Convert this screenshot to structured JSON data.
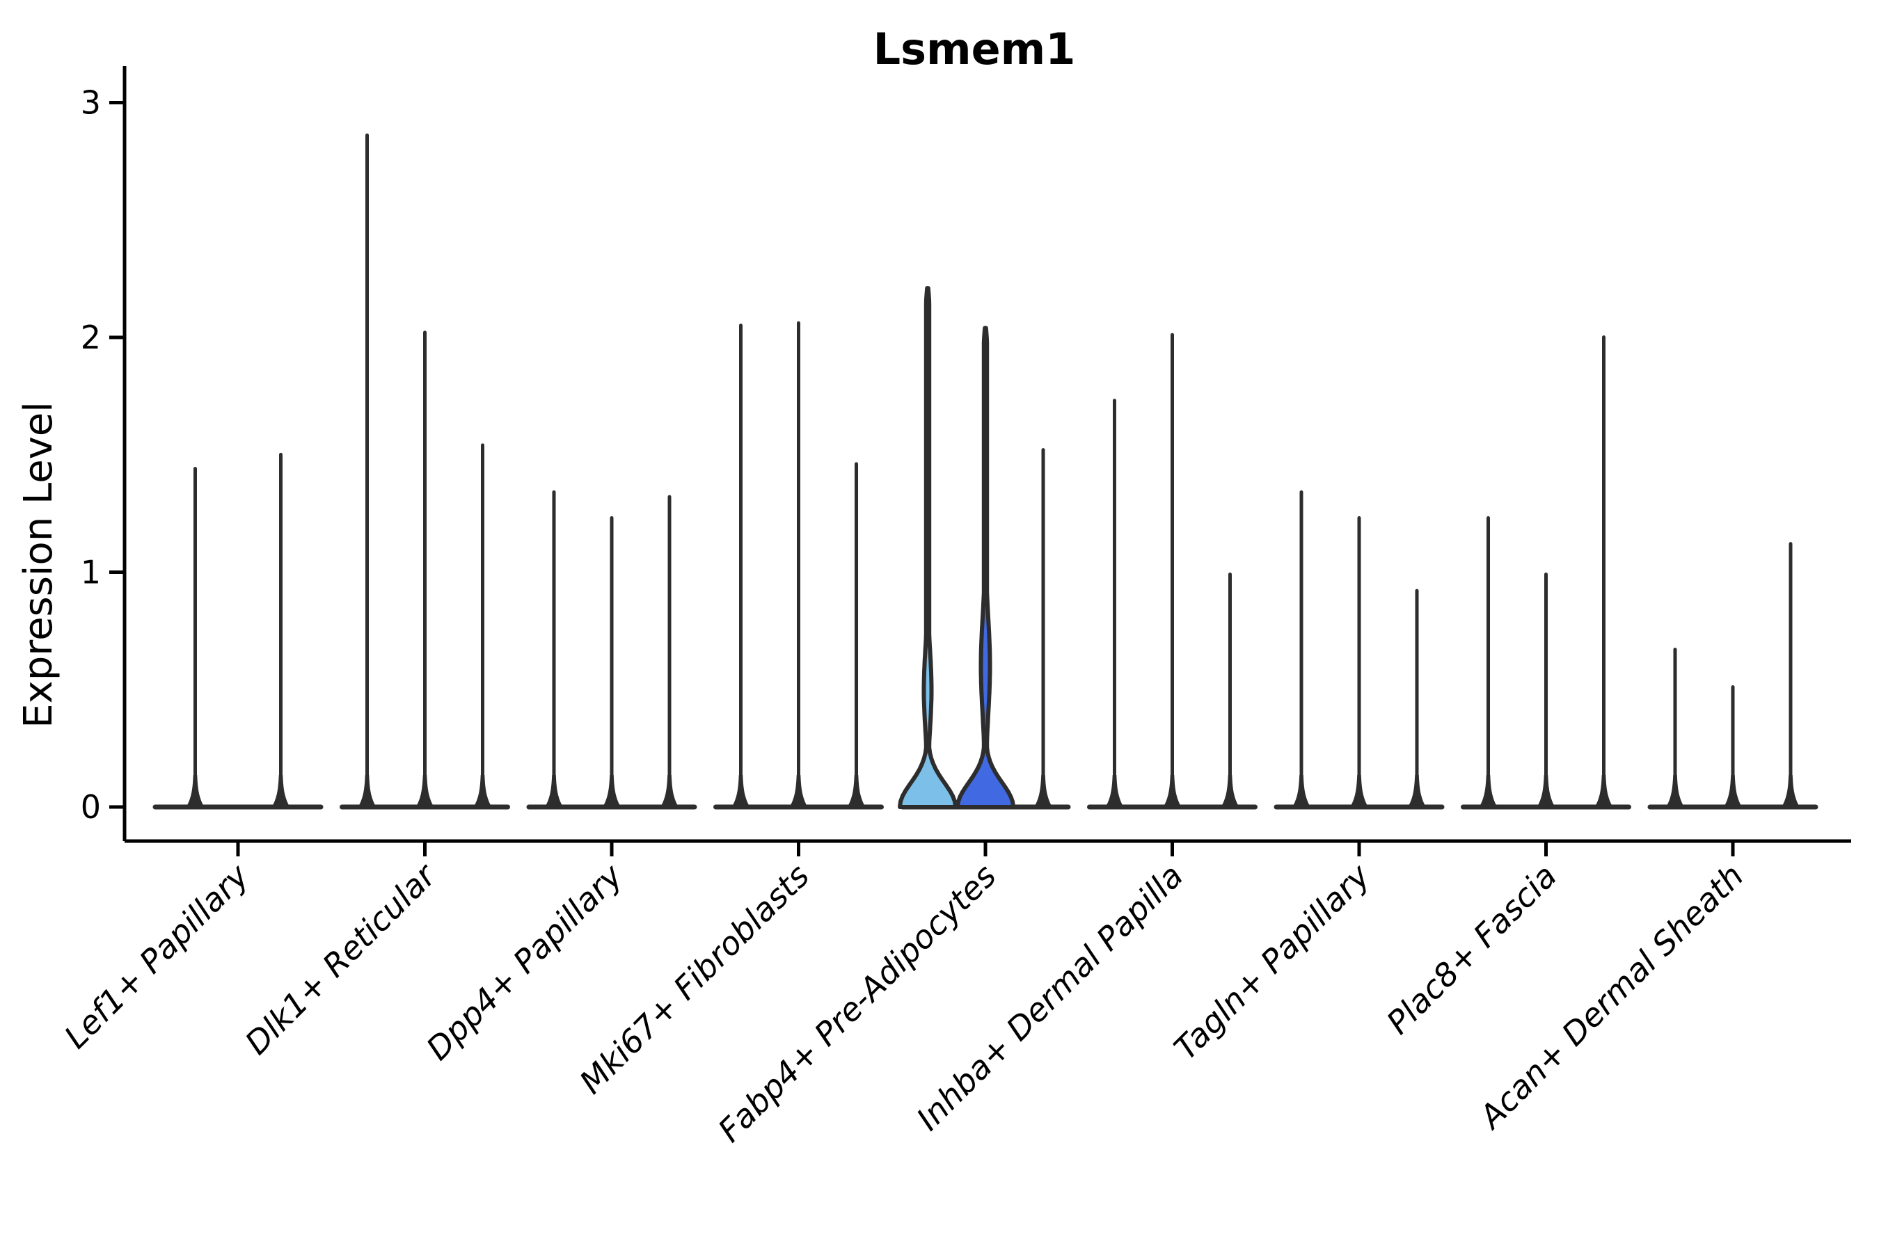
{
  "title": "Lsmem1",
  "y_axis": {
    "label": "Expression Level",
    "tick_labels": [
      "0",
      "1",
      "2",
      "3"
    ]
  },
  "colors": {
    "background": "#ffffff",
    "axis": "#000000",
    "violin_outline": "#2d2d2d",
    "highlight_light_blue": "#7cbfe9",
    "highlight_dark_blue": "#4169e1",
    "plain_violin_fill": "#ffffff"
  },
  "chart_data": {
    "type": "violin",
    "title": "Lsmem1",
    "xlabel": "",
    "ylabel": "Expression Level",
    "ylim": [
      0,
      3
    ],
    "yticks": [
      0,
      1,
      2,
      3
    ],
    "grid": false,
    "legend": "none",
    "x_tick_rotation_deg": 45,
    "categories": [
      "Lef1+ Papillary",
      "Dlk1+ Reticular",
      "Dpp4+ Papillary",
      "Mki67+ Fibroblasts",
      "Fabp4+ Pre-Adipocytes",
      "Inhba+ Dermal Papilla",
      "Tagln+ Papillary",
      "Plac8+ Fascia",
      "Acan+ Dermal Sheath"
    ],
    "groups": [
      {
        "cluster": "Lef1+ Papillary",
        "violins": [
          {
            "max_expression": 1.45,
            "expressed": false,
            "fill": "#ffffff"
          },
          {
            "max_expression": 1.51,
            "expressed": false,
            "fill": "#ffffff"
          }
        ]
      },
      {
        "cluster": "Dlk1+ Reticular",
        "violins": [
          {
            "max_expression": 2.87,
            "expressed": false,
            "fill": "#ffffff"
          },
          {
            "max_expression": 2.03,
            "expressed": false,
            "fill": "#ffffff"
          },
          {
            "max_expression": 1.55,
            "expressed": false,
            "fill": "#ffffff"
          }
        ]
      },
      {
        "cluster": "Dpp4+ Papillary",
        "violins": [
          {
            "max_expression": 1.35,
            "expressed": false,
            "fill": "#ffffff"
          },
          {
            "max_expression": 1.24,
            "expressed": false,
            "fill": "#ffffff"
          },
          {
            "max_expression": 1.33,
            "expressed": false,
            "fill": "#ffffff"
          }
        ]
      },
      {
        "cluster": "Mki67+ Fibroblasts",
        "violins": [
          {
            "max_expression": 2.06,
            "expressed": false,
            "fill": "#ffffff"
          },
          {
            "max_expression": 2.07,
            "expressed": false,
            "fill": "#ffffff"
          },
          {
            "max_expression": 1.47,
            "expressed": false,
            "fill": "#ffffff"
          }
        ]
      },
      {
        "cluster": "Fabp4+ Pre-Adipocytes",
        "violins": [
          {
            "max_expression": 2.21,
            "expressed": true,
            "fill": "#7cbfe9",
            "bulge_center": 0.5,
            "bulge_spread": 0.24,
            "bulge_amp": 5.5
          },
          {
            "max_expression": 2.04,
            "expressed": true,
            "fill": "#4169e1",
            "bulge_center": 0.6,
            "bulge_spread": 0.3,
            "bulge_amp": 6.5
          },
          {
            "max_expression": 1.53,
            "expressed": false,
            "fill": "#ffffff"
          }
        ]
      },
      {
        "cluster": "Inhba+ Dermal Papilla",
        "violins": [
          {
            "max_expression": 1.74,
            "expressed": false,
            "fill": "#ffffff"
          },
          {
            "max_expression": 2.02,
            "expressed": false,
            "fill": "#ffffff"
          },
          {
            "max_expression": 1.0,
            "expressed": false,
            "fill": "#ffffff"
          }
        ]
      },
      {
        "cluster": "Tagln+ Papillary",
        "violins": [
          {
            "max_expression": 1.35,
            "expressed": false,
            "fill": "#ffffff"
          },
          {
            "max_expression": 1.24,
            "expressed": false,
            "fill": "#ffffff"
          },
          {
            "max_expression": 0.93,
            "expressed": false,
            "fill": "#ffffff"
          }
        ]
      },
      {
        "cluster": "Plac8+ Fascia",
        "violins": [
          {
            "max_expression": 1.24,
            "expressed": false,
            "fill": "#ffffff"
          },
          {
            "max_expression": 1.0,
            "expressed": false,
            "fill": "#ffffff"
          },
          {
            "max_expression": 2.01,
            "expressed": false,
            "fill": "#ffffff"
          }
        ]
      },
      {
        "cluster": "Acan+ Dermal Sheath",
        "violins": [
          {
            "max_expression": 0.68,
            "expressed": false,
            "fill": "#ffffff"
          },
          {
            "max_expression": 0.52,
            "expressed": false,
            "fill": "#ffffff"
          },
          {
            "max_expression": 1.13,
            "expressed": false,
            "fill": "#ffffff"
          }
        ]
      }
    ]
  }
}
